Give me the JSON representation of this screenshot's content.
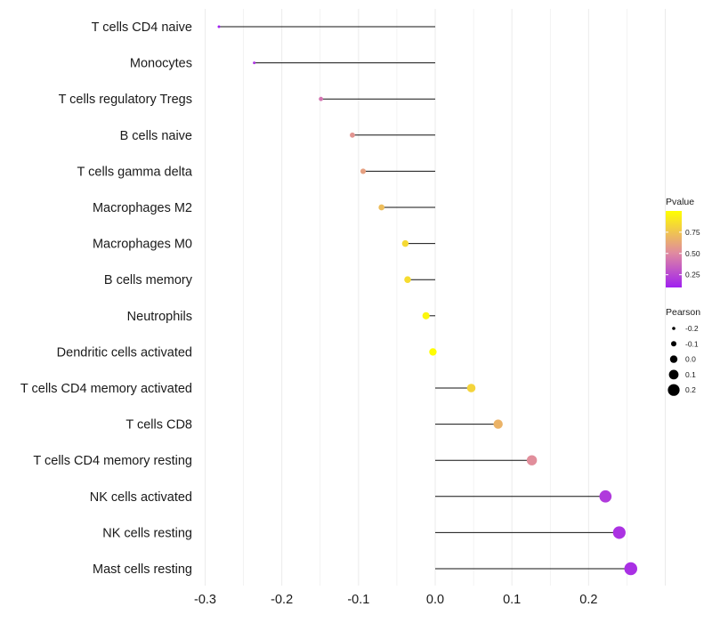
{
  "chart_data": {
    "type": "lollipop",
    "title": "",
    "xlabel": "",
    "ylabel": "",
    "xlim": [
      -0.3,
      0.3
    ],
    "x_ticks": [
      -0.3,
      -0.2,
      -0.1,
      0.0,
      0.1,
      0.2
    ],
    "x_tick_labels": [
      "-0.3",
      "-0.2",
      "-0.1",
      "0.0",
      "0.1",
      "0.2"
    ],
    "grid": true,
    "categories": [
      "T cells CD4 naive",
      "Monocytes",
      "T cells regulatory  Tregs",
      "B cells naive",
      "T cells gamma delta",
      "Macrophages M2",
      "Macrophages M0",
      "B cells memory",
      "Neutrophils",
      "Dendritic cells activated",
      "T cells CD4 memory activated",
      "T cells CD8",
      "T cells CD4 memory resting",
      "NK cells activated",
      "NK cells resting",
      "Mast cells resting"
    ],
    "pearson": [
      -0.282,
      -0.236,
      -0.149,
      -0.108,
      -0.094,
      -0.07,
      -0.039,
      -0.036,
      -0.012,
      -0.003,
      0.047,
      0.082,
      0.126,
      0.222,
      0.24,
      0.255
    ],
    "pvalue": [
      0.1,
      0.18,
      0.42,
      0.55,
      0.6,
      0.72,
      0.84,
      0.85,
      0.96,
      0.99,
      0.82,
      0.68,
      0.52,
      0.2,
      0.17,
      0.16
    ],
    "legend": {
      "color_title": "Pvalue",
      "color_ticks": [
        0.25,
        0.5,
        0.75
      ],
      "color_tick_labels": [
        "0.25",
        "0.50",
        "0.75"
      ],
      "color_range": [
        0.1,
        1.0
      ],
      "color_low": "#a020f0",
      "color_mid": "#e08aa0",
      "color_high": "#ffff00",
      "size_title": "Pearson",
      "size_values": [
        -0.2,
        -0.1,
        0.0,
        0.1,
        0.2
      ],
      "size_labels": [
        "-0.2",
        "-0.1",
        "0.0",
        "0.1",
        "0.2"
      ],
      "position": "right"
    }
  }
}
